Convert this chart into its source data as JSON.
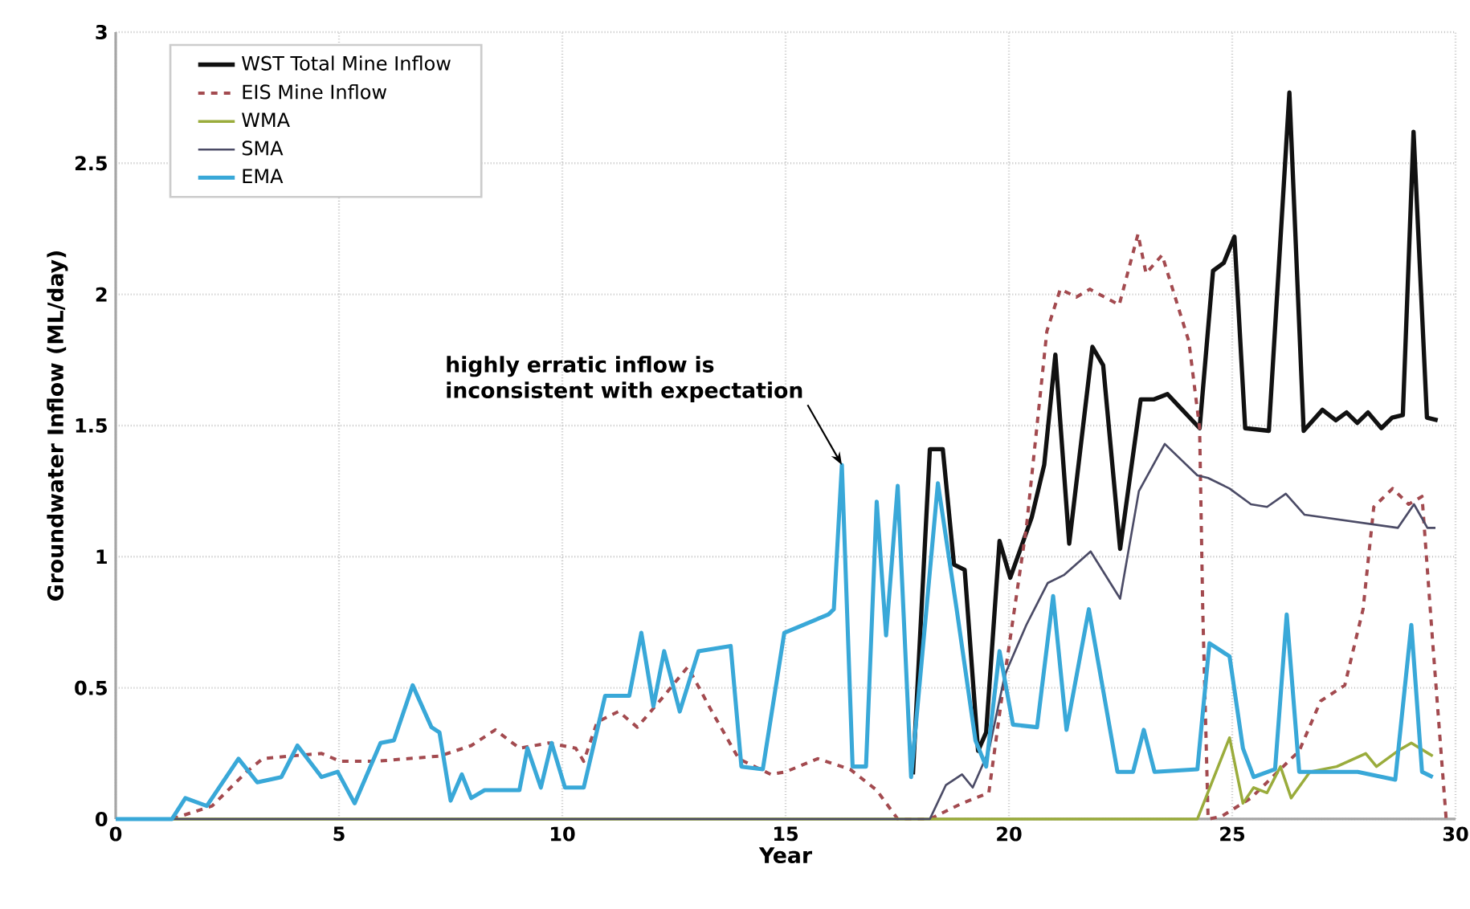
{
  "chart_data": {
    "type": "line",
    "xlabel": "Year",
    "ylabel": "Groundwater Inflow (ML/day)",
    "xlim": [
      0,
      30
    ],
    "ylim": [
      0,
      3
    ],
    "xticks": [
      0,
      5,
      10,
      15,
      20,
      25,
      30
    ],
    "yticks": [
      0,
      0.5,
      1,
      1.5,
      2,
      2.5,
      3
    ],
    "grid": true,
    "legend": "top left",
    "annotations": [
      {
        "text": "highly erratic inflow is inconsistent with expectation",
        "x": 16.26,
        "y": 1.35
      }
    ],
    "series": [
      {
        "name": "WST Total  Mine Inflow",
        "color": "#111111",
        "x": [
          17.85,
          18.23,
          18.52,
          18.77,
          19.01,
          19.31,
          19.49,
          19.79,
          20.03,
          20.51,
          20.79,
          21.04,
          21.35,
          21.87,
          22.11,
          22.49,
          22.95,
          23.25,
          23.55,
          24.27,
          24.57,
          24.81,
          25.05,
          25.29,
          25.82,
          26.28,
          26.6,
          27.02,
          27.32,
          27.56,
          27.8,
          28.04,
          28.34,
          28.58,
          28.82,
          29.06,
          29.36,
          29.6
        ],
        "values": [
          0.17,
          1.41,
          1.41,
          0.97,
          0.95,
          0.26,
          0.33,
          1.06,
          0.92,
          1.15,
          1.35,
          1.77,
          1.05,
          1.8,
          1.73,
          1.03,
          1.6,
          1.6,
          1.62,
          1.49,
          2.09,
          2.12,
          2.22,
          1.49,
          1.48,
          2.77,
          1.48,
          1.56,
          1.52,
          1.55,
          1.51,
          1.55,
          1.49,
          1.53,
          1.54,
          2.62,
          1.53,
          1.52
        ]
      },
      {
        "name": "EIS Mine Inflow",
        "color": "#a34a4f",
        "line_style": "dashed",
        "x": [
          1.26,
          2.16,
          2.93,
          3.29,
          3.89,
          4.61,
          5.03,
          5.81,
          7.25,
          7.96,
          8.5,
          9.04,
          9.7,
          10.3,
          10.48,
          10.78,
          11.26,
          11.68,
          12.28,
          12.81,
          13.35,
          13.95,
          14.67,
          15,
          15.72,
          16.44,
          17.04,
          17.51,
          18.23,
          18.95,
          19.55,
          19.91,
          20.39,
          20.85,
          21.15,
          21.51,
          21.81,
          22.47,
          22.89,
          23.07,
          23.43,
          24.03,
          24.27,
          24.34,
          24.46,
          24.76,
          25.42,
          26.02,
          26.5,
          26.98,
          27.52,
          27.93,
          28.17,
          28.59,
          28.95,
          29.25,
          29.49,
          29.79
        ],
        "values": [
          0,
          0.05,
          0.18,
          0.23,
          0.24,
          0.25,
          0.22,
          0.22,
          0.24,
          0.28,
          0.34,
          0.27,
          0.29,
          0.27,
          0.22,
          0.37,
          0.41,
          0.35,
          0.47,
          0.58,
          0.41,
          0.23,
          0.17,
          0.18,
          0.23,
          0.19,
          0.11,
          0,
          0,
          0.06,
          0.1,
          0.55,
          1.11,
          1.86,
          2.02,
          1.99,
          2.02,
          1.96,
          2.23,
          2.08,
          2.15,
          1.82,
          1.49,
          0.8,
          0,
          0.01,
          0.08,
          0.18,
          0.26,
          0.45,
          0.51,
          0.8,
          1.19,
          1.26,
          1.2,
          1.23,
          0.67,
          0
        ]
      },
      {
        "name": "WMA",
        "color": "#9aac3c",
        "x": [
          0,
          24.22,
          24.94,
          25.24,
          25.48,
          25.78,
          26.08,
          26.32,
          26.74,
          27.34,
          27.99,
          28.23,
          28.71,
          29.01,
          29.49
        ],
        "values": [
          0,
          0,
          0.31,
          0.06,
          0.12,
          0.1,
          0.2,
          0.08,
          0.18,
          0.2,
          0.25,
          0.2,
          0.26,
          0.29,
          0.24
        ]
      },
      {
        "name": "SMA",
        "color": "#4b4b66",
        "x": [
          0,
          18.23,
          18.59,
          18.95,
          19.19,
          19.55,
          19.91,
          20.39,
          20.87,
          21.23,
          21.83,
          22.49,
          22.91,
          23.49,
          24.22,
          24.46,
          24.94,
          25.42,
          25.78,
          26.2,
          26.62,
          28.71,
          29.07,
          29.37,
          29.55
        ],
        "values": [
          0,
          0,
          0.13,
          0.17,
          0.12,
          0.26,
          0.55,
          0.74,
          0.9,
          0.93,
          1.02,
          0.84,
          1.25,
          1.43,
          1.31,
          1.3,
          1.26,
          1.2,
          1.19,
          1.24,
          1.16,
          1.11,
          1.2,
          1.11,
          1.11
        ]
      },
      {
        "name": "EMA",
        "color": "#39a8d8",
        "x": [
          0,
          1.26,
          1.56,
          2.04,
          2.75,
          3.17,
          3.71,
          4.07,
          4.61,
          4.97,
          5.35,
          5.93,
          6.23,
          6.65,
          7.07,
          7.25,
          7.5,
          7.75,
          7.96,
          8.26,
          9.04,
          9.22,
          9.52,
          9.76,
          10.06,
          10.48,
          10.96,
          11.5,
          11.77,
          12.04,
          12.28,
          12.63,
          13.05,
          13.77,
          14.01,
          14.49,
          14.97,
          15.96,
          16.08,
          16.26,
          16.5,
          16.8,
          17.04,
          17.25,
          17.51,
          17.81,
          18.41,
          18.83,
          19.25,
          19.49,
          19.79,
          20.09,
          20.63,
          20.99,
          21.29,
          21.79,
          22.07,
          22.43,
          22.78,
          23.02,
          23.26,
          24.22,
          24.49,
          24.94,
          25.24,
          25.48,
          25.96,
          26.22,
          26.5,
          27.81,
          28.65,
          29.01,
          29.25,
          29.49
        ],
        "values": [
          0,
          0,
          0.08,
          0.05,
          0.23,
          0.14,
          0.16,
          0.28,
          0.16,
          0.18,
          0.06,
          0.29,
          0.3,
          0.51,
          0.35,
          0.33,
          0.07,
          0.17,
          0.08,
          0.11,
          0.11,
          0.27,
          0.12,
          0.29,
          0.12,
          0.12,
          0.47,
          0.47,
          0.71,
          0.43,
          0.64,
          0.41,
          0.64,
          0.66,
          0.2,
          0.19,
          0.71,
          0.78,
          0.8,
          1.35,
          0.2,
          0.2,
          1.21,
          0.7,
          1.27,
          0.16,
          1.28,
          0.8,
          0.3,
          0.2,
          0.64,
          0.36,
          0.35,
          0.85,
          0.34,
          0.8,
          0.53,
          0.18,
          0.18,
          0.34,
          0.18,
          0.19,
          0.67,
          0.62,
          0.27,
          0.16,
          0.19,
          0.78,
          0.18,
          0.18,
          0.15,
          0.74,
          0.18,
          0.16
        ]
      }
    ]
  }
}
